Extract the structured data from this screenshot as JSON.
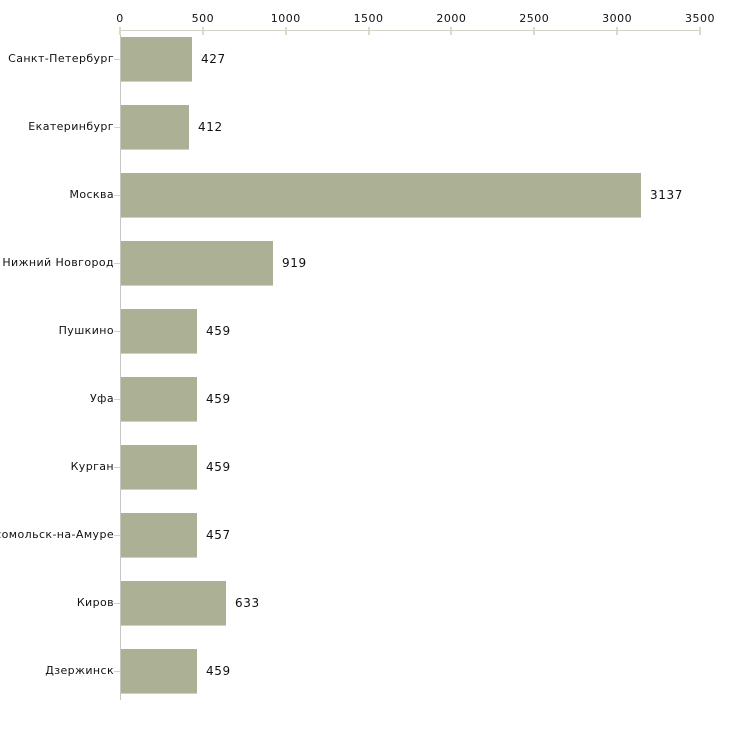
{
  "page": {
    "background_color": "#ffffff"
  },
  "chart_data": {
    "type": "bar",
    "orientation": "horizontal",
    "title": "",
    "categories": [
      "Санкт-Петербург",
      "Екатеринбург",
      "Москва",
      "Нижний Новгород",
      "Пушкино",
      "Уфа",
      "Курган",
      "мсомольск-на-Амуре",
      "Киров",
      "Дзержинск"
    ],
    "values": [
      427,
      412,
      3137,
      919,
      459,
      459,
      459,
      457,
      633,
      459
    ],
    "value_labels": [
      "427",
      "412",
      "3137",
      "919",
      "459",
      "459",
      "459",
      "457",
      "633",
      "459"
    ],
    "xlabel": "",
    "ylabel": "",
    "xlim": [
      0,
      3500
    ],
    "xticks": [
      0,
      500,
      1000,
      1500,
      2000,
      2500,
      3000,
      3500
    ],
    "xtick_labels": [
      "0",
      "500",
      "1000",
      "1500",
      "2000",
      "2500",
      "3000",
      "3500"
    ],
    "x_axis_position": "top",
    "grid": false,
    "legend": null,
    "bar_color": "#acb196",
    "axis_line_color": "#d2d2ca",
    "y_axis_line_color": "#c6c6c2",
    "tick_mark_color": "#d9dcc0",
    "text_color": "#111111"
  }
}
